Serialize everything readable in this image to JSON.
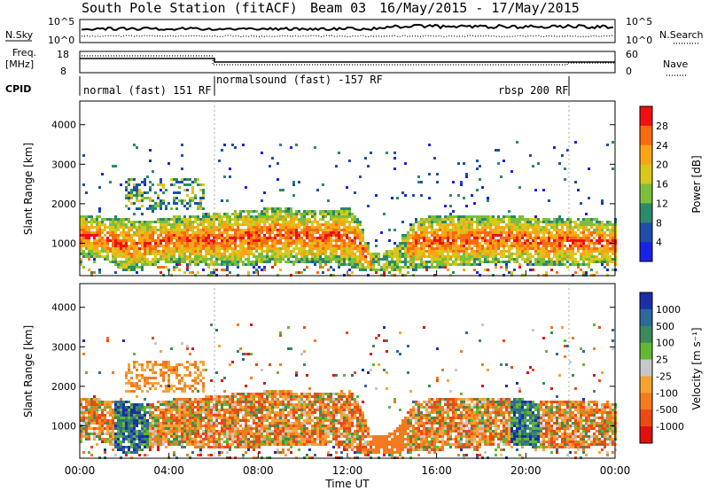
{
  "header": {
    "title": "South Pole Station (fitACF)",
    "beam": "Beam 03",
    "date_range": "16/May/2015 - 17/May/2015"
  },
  "panels": {
    "nsky": {
      "left_label": "N.Sky",
      "right_label": "N.Search",
      "left_ticks": [
        "10^5",
        "10^0"
      ],
      "right_ticks": [
        "10^5",
        "10^0"
      ]
    },
    "freq": {
      "left_label_1": "Freq.",
      "left_label_2": "[MHz]",
      "right_label": "Nave",
      "left_ticks": [
        "18",
        "8"
      ],
      "right_ticks": [
        "60",
        "0"
      ]
    },
    "cpid": {
      "label": "CPID",
      "segments": [
        "normal (fast) 151 RF",
        "normalsound (fast) -157 RF",
        "rbsp 200 RF"
      ]
    }
  },
  "chart_data": [
    {
      "type": "heatmap",
      "name": "power",
      "ylabel": "Slant Range [km]",
      "xlabel": "",
      "xlim_hours": [
        0,
        24
      ],
      "ylim": [
        180,
        4600
      ],
      "y_ticks": [
        1000,
        2000,
        3000,
        4000
      ],
      "colorbar": {
        "label": "Power [dB]",
        "tick_labels": [
          "28",
          "24",
          "20",
          "16",
          "12",
          "8",
          "4"
        ],
        "colors": [
          "#f01010",
          "#fa6a10",
          "#fba516",
          "#d9c71a",
          "#7bbf3a",
          "#2a8a6a",
          "#1f4fa8",
          "#1a22e6"
        ]
      }
    },
    {
      "type": "heatmap",
      "name": "velocity",
      "ylabel": "Slant Range [km]",
      "xlabel": "Time UT",
      "xlim_hours": [
        0,
        24
      ],
      "ylim": [
        180,
        4600
      ],
      "y_ticks": [
        1000,
        2000,
        3000,
        4000
      ],
      "x_tick_labels": [
        "00:00",
        "04:00",
        "08:00",
        "12:00",
        "16:00",
        "20:00",
        "00:00"
      ],
      "colorbar": {
        "label": "Velocity [m s⁻¹]",
        "tick_labels": [
          "1000",
          "500",
          "100",
          "25",
          "-25",
          "-100",
          "-500",
          "-1000"
        ],
        "colors": [
          "#1c2fa8",
          "#2b6a9a",
          "#3a8a5a",
          "#62b832",
          "#c8c8c8",
          "#f6a332",
          "#f47a1f",
          "#ea4a14",
          "#e01010"
        ]
      }
    }
  ],
  "band_profile": [
    {
      "t": 0.0,
      "lo": 700,
      "hi": 1750
    },
    {
      "t": 1.0,
      "lo": 650,
      "hi": 1700
    },
    {
      "t": 2.0,
      "lo": 300,
      "hi": 1650
    },
    {
      "t": 3.0,
      "lo": 450,
      "hi": 1600
    },
    {
      "t": 4.0,
      "lo": 550,
      "hi": 1700
    },
    {
      "t": 5.0,
      "lo": 500,
      "hi": 1750
    },
    {
      "t": 6.0,
      "lo": 450,
      "hi": 1800
    },
    {
      "t": 7.0,
      "lo": 450,
      "hi": 1850
    },
    {
      "t": 8.0,
      "lo": 500,
      "hi": 1900
    },
    {
      "t": 9.0,
      "lo": 550,
      "hi": 1950
    },
    {
      "t": 10.0,
      "lo": 550,
      "hi": 1850
    },
    {
      "t": 11.0,
      "lo": 550,
      "hi": 1850
    },
    {
      "t": 12.0,
      "lo": 450,
      "hi": 1950
    },
    {
      "t": 12.5,
      "lo": 350,
      "hi": 1600
    },
    {
      "t": 13.0,
      "lo": 320,
      "hi": 800
    },
    {
      "t": 14.0,
      "lo": 320,
      "hi": 850
    },
    {
      "t": 15.0,
      "lo": 420,
      "hi": 1650
    },
    {
      "t": 16.0,
      "lo": 420,
      "hi": 1750
    },
    {
      "t": 17.0,
      "lo": 450,
      "hi": 1750
    },
    {
      "t": 18.0,
      "lo": 500,
      "hi": 1750
    },
    {
      "t": 19.0,
      "lo": 550,
      "hi": 1750
    },
    {
      "t": 20.0,
      "lo": 500,
      "hi": 1700
    },
    {
      "t": 21.0,
      "lo": 450,
      "hi": 1650
    },
    {
      "t": 22.0,
      "lo": 450,
      "hi": 1700
    },
    {
      "t": 23.0,
      "lo": 500,
      "hi": 1650
    },
    {
      "t": 24.0,
      "lo": 500,
      "hi": 1600
    }
  ]
}
